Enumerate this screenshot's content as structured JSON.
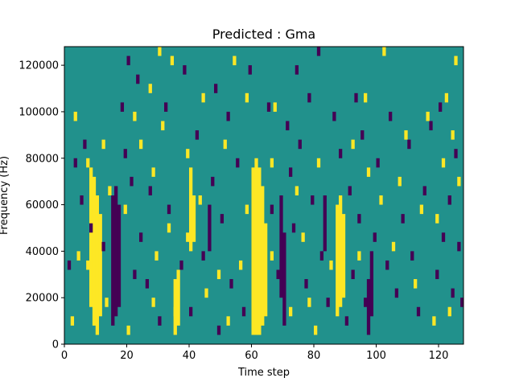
{
  "chart_data": {
    "type": "heatmap",
    "title": "Predicted : Gma",
    "xlabel": "Time step",
    "ylabel": "Frequency (Hz)",
    "xlim": [
      0,
      128
    ],
    "ylim": [
      0,
      128000
    ],
    "x_ticks": [
      0,
      20,
      40,
      60,
      80,
      100,
      120
    ],
    "x_tick_labels": [
      "0",
      "20",
      "40",
      "60",
      "80",
      "100",
      "120"
    ],
    "y_ticks": [
      0,
      20000,
      40000,
      60000,
      80000,
      100000,
      120000
    ],
    "y_tick_labels": [
      "0",
      "20000",
      "40000",
      "60000",
      "80000",
      "100000",
      "120000"
    ],
    "grid": false,
    "legend": "none",
    "colormap": "viridis",
    "background_value": 0,
    "value_levels": [
      -1,
      0,
      1
    ],
    "level_colors": {
      "low": "#440154",
      "mid": "#21918c",
      "high": "#fde725"
    },
    "high_runs": [
      {
        "x": 8,
        "y": [
          16000,
          72000
        ]
      },
      {
        "x": 9,
        "y": [
          8000,
          68000
        ]
      },
      {
        "x": 10,
        "y": [
          4000,
          60000
        ]
      },
      {
        "x": 11,
        "y": [
          12000,
          52000
        ]
      },
      {
        "x": 35,
        "y": [
          4000,
          24000
        ]
      },
      {
        "x": 36,
        "y": [
          8000,
          28000
        ]
      },
      {
        "x": 40,
        "y": [
          40000,
          72000
        ]
      },
      {
        "x": 41,
        "y": [
          44000,
          60000
        ]
      },
      {
        "x": 60,
        "y": [
          4000,
          72000
        ]
      },
      {
        "x": 61,
        "y": [
          4000,
          76000
        ]
      },
      {
        "x": 62,
        "y": [
          4000,
          72000
        ]
      },
      {
        "x": 63,
        "y": [
          8000,
          64000
        ]
      },
      {
        "x": 64,
        "y": [
          12000,
          48000
        ]
      },
      {
        "x": 87,
        "y": [
          12000,
          56000
        ]
      },
      {
        "x": 88,
        "y": [
          16000,
          60000
        ]
      },
      {
        "x": 89,
        "y": [
          20000,
          52000
        ]
      }
    ],
    "low_runs": [
      {
        "x": 15,
        "y": [
          8000,
          60000
        ]
      },
      {
        "x": 16,
        "y": [
          12000,
          64000
        ]
      },
      {
        "x": 17,
        "y": [
          16000,
          56000
        ]
      },
      {
        "x": 46,
        "y": [
          40000,
          56000
        ]
      },
      {
        "x": 69,
        "y": [
          20000,
          60000
        ]
      },
      {
        "x": 70,
        "y": [
          8000,
          44000
        ]
      },
      {
        "x": 83,
        "y": [
          40000,
          60000
        ]
      },
      {
        "x": 97,
        "y": [
          4000,
          24000
        ]
      },
      {
        "x": 98,
        "y": [
          12000,
          36000
        ]
      }
    ],
    "high_points": [
      [
        2,
        8000
      ],
      [
        3,
        96000
      ],
      [
        4,
        36000
      ],
      [
        7,
        32000
      ],
      [
        7,
        76000
      ],
      [
        12,
        84000
      ],
      [
        13,
        16000
      ],
      [
        14,
        64000
      ],
      [
        19,
        56000
      ],
      [
        20,
        4000
      ],
      [
        22,
        96000
      ],
      [
        24,
        84000
      ],
      [
        27,
        108000
      ],
      [
        28,
        72000
      ],
      [
        28,
        16000
      ],
      [
        29,
        36000
      ],
      [
        30,
        124000
      ],
      [
        31,
        92000
      ],
      [
        33,
        48000
      ],
      [
        34,
        120000
      ],
      [
        35,
        12000
      ],
      [
        39,
        80000
      ],
      [
        39,
        44000
      ],
      [
        43,
        60000
      ],
      [
        44,
        104000
      ],
      [
        45,
        20000
      ],
      [
        49,
        28000
      ],
      [
        51,
        84000
      ],
      [
        52,
        8000
      ],
      [
        54,
        120000
      ],
      [
        56,
        32000
      ],
      [
        58,
        104000
      ],
      [
        58,
        56000
      ],
      [
        66,
        76000
      ],
      [
        66,
        36000
      ],
      [
        67,
        100000
      ],
      [
        72,
        12000
      ],
      [
        74,
        64000
      ],
      [
        76,
        44000
      ],
      [
        78,
        16000
      ],
      [
        80,
        4000
      ],
      [
        81,
        76000
      ],
      [
        85,
        32000
      ],
      [
        92,
        84000
      ],
      [
        94,
        36000
      ],
      [
        96,
        104000
      ],
      [
        97,
        72000
      ],
      [
        101,
        60000
      ],
      [
        102,
        124000
      ],
      [
        105,
        40000
      ],
      [
        107,
        68000
      ],
      [
        109,
        88000
      ],
      [
        112,
        24000
      ],
      [
        114,
        56000
      ],
      [
        116,
        96000
      ],
      [
        118,
        8000
      ],
      [
        119,
        52000
      ],
      [
        121,
        76000
      ],
      [
        122,
        104000
      ],
      [
        123,
        12000
      ],
      [
        124,
        88000
      ],
      [
        125,
        120000
      ],
      [
        126,
        68000
      ]
    ],
    "low_points": [
      [
        1,
        32000
      ],
      [
        3,
        76000
      ],
      [
        5,
        60000
      ],
      [
        6,
        84000
      ],
      [
        8,
        48000
      ],
      [
        12,
        40000
      ],
      [
        18,
        100000
      ],
      [
        19,
        80000
      ],
      [
        20,
        120000
      ],
      [
        21,
        68000
      ],
      [
        22,
        28000
      ],
      [
        23,
        112000
      ],
      [
        24,
        44000
      ],
      [
        26,
        24000
      ],
      [
        27,
        64000
      ],
      [
        30,
        8000
      ],
      [
        32,
        100000
      ],
      [
        33,
        56000
      ],
      [
        37,
        32000
      ],
      [
        38,
        116000
      ],
      [
        40,
        12000
      ],
      [
        42,
        88000
      ],
      [
        44,
        36000
      ],
      [
        47,
        68000
      ],
      [
        48,
        108000
      ],
      [
        49,
        4000
      ],
      [
        50,
        52000
      ],
      [
        52,
        96000
      ],
      [
        53,
        24000
      ],
      [
        55,
        76000
      ],
      [
        57,
        12000
      ],
      [
        59,
        116000
      ],
      [
        65,
        100000
      ],
      [
        66,
        56000
      ],
      [
        68,
        28000
      ],
      [
        71,
        92000
      ],
      [
        72,
        72000
      ],
      [
        73,
        48000
      ],
      [
        74,
        116000
      ],
      [
        75,
        84000
      ],
      [
        77,
        24000
      ],
      [
        78,
        104000
      ],
      [
        79,
        60000
      ],
      [
        81,
        124000
      ],
      [
        82,
        36000
      ],
      [
        84,
        16000
      ],
      [
        86,
        96000
      ],
      [
        88,
        80000
      ],
      [
        90,
        8000
      ],
      [
        91,
        64000
      ],
      [
        92,
        28000
      ],
      [
        93,
        104000
      ],
      [
        94,
        52000
      ],
      [
        95,
        88000
      ],
      [
        96,
        16000
      ],
      [
        99,
        44000
      ],
      [
        100,
        76000
      ],
      [
        103,
        32000
      ],
      [
        104,
        96000
      ],
      [
        106,
        20000
      ],
      [
        108,
        52000
      ],
      [
        110,
        84000
      ],
      [
        111,
        36000
      ],
      [
        113,
        12000
      ],
      [
        115,
        64000
      ],
      [
        117,
        92000
      ],
      [
        119,
        28000
      ],
      [
        120,
        100000
      ],
      [
        121,
        44000
      ],
      [
        123,
        60000
      ],
      [
        124,
        20000
      ],
      [
        125,
        80000
      ],
      [
        126,
        40000
      ],
      [
        127,
        16000
      ]
    ]
  }
}
